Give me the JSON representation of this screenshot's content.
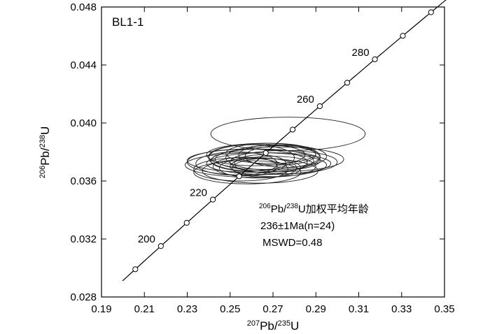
{
  "chart_data": {
    "type": "scatter",
    "subtype": "concordia",
    "panel_label": "BL1-1",
    "xlabel": {
      "sup": "207",
      "base": "Pb/",
      "sup2": "235",
      "end": "U"
    },
    "ylabel": {
      "sup": "206",
      "base": "Pb/",
      "sup2": "238",
      "end": "U"
    },
    "xlim": [
      0.19,
      0.35
    ],
    "ylim": [
      0.028,
      0.048
    ],
    "x_ticks": [
      0.19,
      0.21,
      0.23,
      0.25,
      0.27,
      0.29,
      0.31,
      0.33,
      0.35
    ],
    "x_tick_labels": [
      "0.19",
      "0.21",
      "0.23",
      "0.25",
      "0.27",
      "0.29",
      "0.31",
      "0.33",
      "0.35"
    ],
    "y_ticks": [
      0.028,
      0.032,
      0.036,
      0.04,
      0.044,
      0.048
    ],
    "y_tick_labels": [
      "0.028",
      "0.032",
      "0.036",
      "0.040",
      "0.044",
      "0.048"
    ],
    "grid": false,
    "concordia_ages_ma": [
      190,
      200,
      210,
      220,
      230,
      240,
      250,
      260,
      270,
      280,
      290,
      300
    ],
    "concordia_age_labels": [
      {
        "age": 200,
        "text": "200"
      },
      {
        "age": 220,
        "text": "220"
      },
      {
        "age": 260,
        "text": "260"
      },
      {
        "age": 280,
        "text": "280"
      }
    ],
    "ellipses": [
      {
        "x": 0.277,
        "y": 0.03925,
        "rx": 0.036,
        "ry": 0.00115
      },
      {
        "x": 0.262,
        "y": 0.0371,
        "rx": 0.033,
        "ry": 0.00085
      },
      {
        "x": 0.258,
        "y": 0.0373,
        "rx": 0.028,
        "ry": 0.0009
      },
      {
        "x": 0.265,
        "y": 0.0374,
        "rx": 0.024,
        "ry": 0.0008
      },
      {
        "x": 0.27,
        "y": 0.0376,
        "rx": 0.022,
        "ry": 0.00085
      },
      {
        "x": 0.272,
        "y": 0.0378,
        "rx": 0.018,
        "ry": 0.0007
      },
      {
        "x": 0.255,
        "y": 0.0368,
        "rx": 0.022,
        "ry": 0.0008
      },
      {
        "x": 0.268,
        "y": 0.0372,
        "rx": 0.029,
        "ry": 0.00075
      },
      {
        "x": 0.26,
        "y": 0.0376,
        "rx": 0.02,
        "ry": 0.0009
      },
      {
        "x": 0.275,
        "y": 0.0373,
        "rx": 0.025,
        "ry": 0.0008
      },
      {
        "x": 0.263,
        "y": 0.0369,
        "rx": 0.018,
        "ry": 0.0007
      },
      {
        "x": 0.266,
        "y": 0.0377,
        "rx": 0.026,
        "ry": 0.0009
      },
      {
        "x": 0.257,
        "y": 0.037,
        "rx": 0.015,
        "ry": 0.00065
      },
      {
        "x": 0.27,
        "y": 0.037,
        "rx": 0.02,
        "ry": 0.0007
      },
      {
        "x": 0.262,
        "y": 0.0378,
        "rx": 0.023,
        "ry": 0.00075
      },
      {
        "x": 0.273,
        "y": 0.0375,
        "rx": 0.03,
        "ry": 0.00085
      },
      {
        "x": 0.258,
        "y": 0.0366,
        "rx": 0.025,
        "ry": 0.0008
      },
      {
        "x": 0.264,
        "y": 0.0372,
        "rx": 0.012,
        "ry": 0.0006
      },
      {
        "x": 0.267,
        "y": 0.0369,
        "rx": 0.016,
        "ry": 0.00065
      },
      {
        "x": 0.261,
        "y": 0.0374,
        "rx": 0.031,
        "ry": 0.0008
      },
      {
        "x": 0.276,
        "y": 0.0377,
        "rx": 0.019,
        "ry": 0.00075
      },
      {
        "x": 0.253,
        "y": 0.0372,
        "rx": 0.019,
        "ry": 0.0008
      },
      {
        "x": 0.269,
        "y": 0.0379,
        "rx": 0.021,
        "ry": 0.0007
      },
      {
        "x": 0.264,
        "y": 0.0367,
        "rx": 0.027,
        "ry": 0.00085
      }
    ],
    "annotation": {
      "line1": {
        "sup": "206",
        "base": "Pb/",
        "sup2": "238",
        "end": "U加权平均年龄"
      },
      "line2": "236±1Ma(n=24)",
      "line3": "MSWD=0.48"
    }
  }
}
